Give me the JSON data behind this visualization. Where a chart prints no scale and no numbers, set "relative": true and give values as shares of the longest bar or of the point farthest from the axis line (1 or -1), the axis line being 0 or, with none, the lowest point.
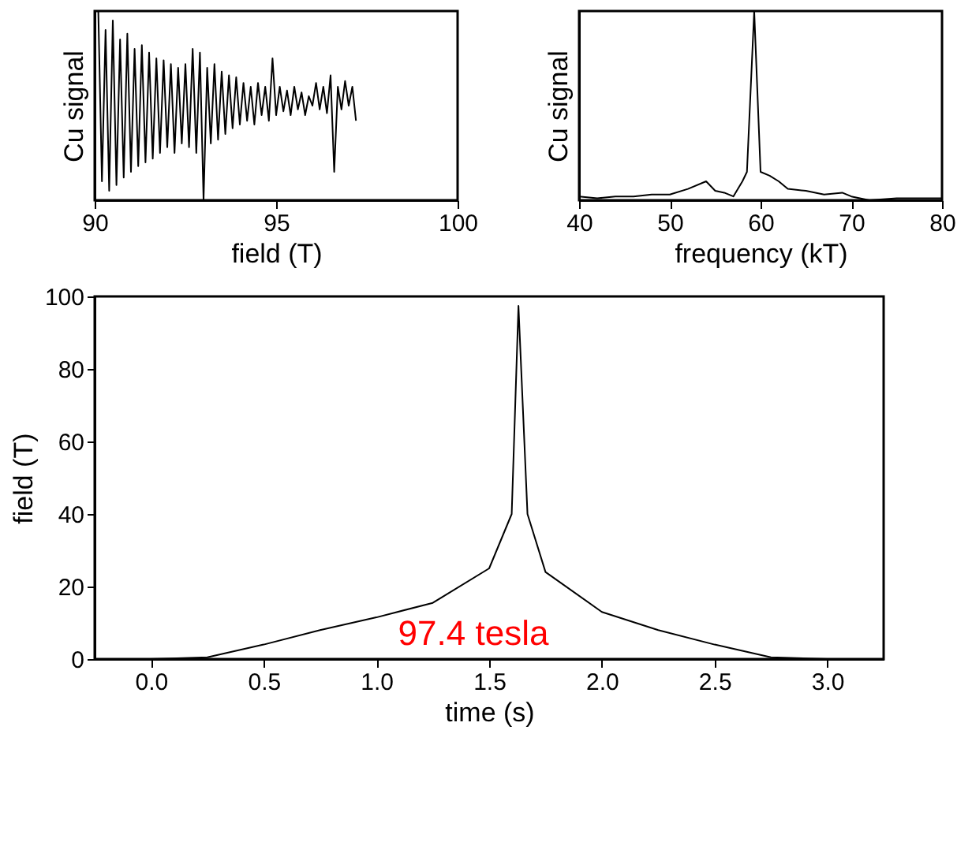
{
  "chart_data": [
    {
      "type": "line",
      "xlabel": "field (T)",
      "ylabel": "Cu signal",
      "relative": true,
      "tick_labels": "x",
      "color": "#000000",
      "xlim": [
        90,
        100
      ],
      "xticks": [
        90,
        95,
        100
      ],
      "x": [
        90.1,
        90.2,
        90.3,
        90.4,
        90.5,
        90.6,
        90.7,
        90.8,
        90.9,
        91.0,
        91.1,
        91.2,
        91.3,
        91.4,
        91.5,
        91.6,
        91.7,
        91.8,
        91.9,
        92.0,
        92.1,
        92.2,
        92.3,
        92.4,
        92.5,
        92.6,
        92.7,
        92.8,
        92.9,
        93.0,
        93.1,
        93.2,
        93.3,
        93.4,
        93.5,
        93.6,
        93.7,
        93.8,
        93.9,
        94.0,
        94.1,
        94.2,
        94.3,
        94.4,
        94.5,
        94.6,
        94.7,
        94.8,
        94.9,
        95.0,
        95.1,
        95.2,
        95.3,
        95.4,
        95.5,
        95.6,
        95.7,
        95.8,
        95.9,
        96.0,
        96.1,
        96.2,
        96.3,
        96.4,
        96.5,
        96.6,
        96.7,
        96.8,
        96.9,
        97.0,
        97.1,
        97.2
      ],
      "values": [
        1,
        0.1,
        0.9,
        0.05,
        0.95,
        0.08,
        0.85,
        0.12,
        0.88,
        0.15,
        0.8,
        0.18,
        0.82,
        0.2,
        0.78,
        0.22,
        0.75,
        0.25,
        0.74,
        0.28,
        0.72,
        0.25,
        0.7,
        0.3,
        0.72,
        0.28,
        0.8,
        0.25,
        0.78,
        0,
        0.7,
        0.3,
        0.72,
        0.32,
        0.68,
        0.35,
        0.66,
        0.38,
        0.65,
        0.4,
        0.62,
        0.42,
        0.6,
        0.4,
        0.62,
        0.45,
        0.6,
        0.42,
        0.75,
        0.45,
        0.6,
        0.47,
        0.58,
        0.45,
        0.6,
        0.48,
        0.57,
        0.45,
        0.55,
        0.5,
        0.62,
        0.48,
        0.6,
        0.46,
        0.66,
        0.15,
        0.6,
        0.48,
        0.63,
        0.5,
        0.6,
        0.42
      ]
    },
    {
      "type": "line",
      "xlabel": "frequency (kT)",
      "ylabel": "Cu signal",
      "relative": true,
      "tick_labels": "x",
      "color": "#000000",
      "xlim": [
        40,
        80
      ],
      "xticks": [
        40,
        50,
        60,
        70,
        80
      ],
      "x": [
        40,
        42,
        44,
        46,
        48,
        50,
        52,
        54,
        55,
        56,
        57,
        58,
        58.5,
        59.3,
        60,
        61,
        62,
        63,
        65,
        67,
        69,
        70,
        72,
        75,
        78,
        80
      ],
      "values": [
        0.02,
        0.01,
        0.02,
        0.02,
        0.03,
        0.03,
        0.06,
        0.1,
        0.05,
        0.04,
        0.02,
        0.1,
        0.15,
        1,
        0.15,
        0.13,
        0.1,
        0.06,
        0.05,
        0.03,
        0.04,
        0.02,
        0,
        0.01,
        0.01,
        0.01
      ]
    },
    {
      "type": "line",
      "xlabel": "time (s)",
      "ylabel": "field (T)",
      "color": "#000000",
      "xlim": [
        -0.25,
        3.25
      ],
      "xticks": [
        {
          "value": 0,
          "label": "0.0"
        },
        0.5,
        {
          "value": 1,
          "label": "1.0"
        },
        1.5,
        {
          "value": 2,
          "label": "2.0"
        },
        2.5,
        {
          "value": 3,
          "label": "3.0"
        }
      ],
      "ylim": [
        0,
        100
      ],
      "yticks": [
        0,
        20,
        40,
        60,
        80,
        100
      ],
      "x": [
        0.0,
        0.25,
        0.5,
        0.75,
        1.0,
        1.25,
        1.5,
        1.6,
        1.63,
        1.67,
        1.75,
        2.0,
        2.25,
        2.5,
        2.75,
        3.0
      ],
      "values": [
        0,
        0.5,
        4,
        8,
        11.5,
        15.5,
        25,
        40,
        97.4,
        40,
        24,
        13,
        8,
        4,
        0.5,
        0
      ],
      "annotations": [
        "97.4 tesla"
      ]
    }
  ]
}
